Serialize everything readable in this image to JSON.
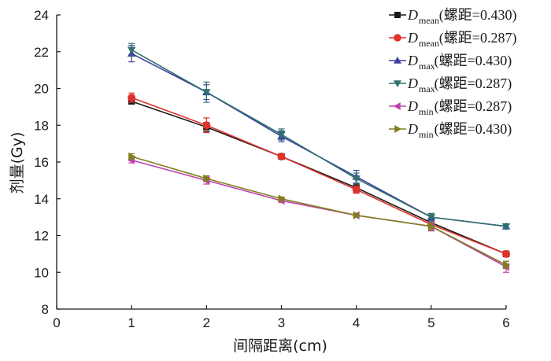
{
  "chart_data": {
    "type": "line",
    "xlabel": "间隔距离(cm)",
    "ylabel": "剂量(Gy)",
    "xlim": [
      0,
      6
    ],
    "ylim": [
      8,
      24
    ],
    "xticks": [
      0,
      1,
      2,
      3,
      4,
      5,
      6
    ],
    "yticks": [
      8,
      10,
      12,
      14,
      16,
      18,
      20,
      22,
      24
    ],
    "grid": false,
    "legend_position": "top-right",
    "x": [
      1,
      2,
      3,
      4,
      5,
      6
    ],
    "series": [
      {
        "name": "Dmean(螺距=0.430)",
        "label_main": "D",
        "label_sub": "mean",
        "label_rest": "(螺距=0.430)",
        "color": "#1a1a1a",
        "marker": "square",
        "values": [
          19.3,
          17.9,
          16.3,
          14.6,
          12.7,
          11.0
        ],
        "errors": [
          0.15,
          0.25,
          0.1,
          0.25,
          0.2,
          0.1
        ]
      },
      {
        "name": "Dmean(螺距=0.287)",
        "label_main": "D",
        "label_sub": "mean",
        "label_rest": "(螺距=0.287)",
        "color": "#e0312a",
        "marker": "circle",
        "values": [
          19.5,
          18.0,
          16.3,
          14.5,
          12.6,
          11.0
        ],
        "errors": [
          0.25,
          0.4,
          0.1,
          0.2,
          0.2,
          0.1
        ]
      },
      {
        "name": "Dmax(螺距=0.430)",
        "label_main": "D",
        "label_sub": "max",
        "label_rest": "(螺距=0.430)",
        "color": "#4040a0",
        "marker": "triangle-up",
        "values": [
          21.9,
          19.8,
          17.4,
          15.2,
          13.0,
          12.5
        ],
        "errors": [
          0.45,
          0.4,
          0.3,
          0.35,
          0.2,
          0.1
        ]
      },
      {
        "name": "Dmax(螺距=0.287)",
        "label_main": "D",
        "label_sub": "max",
        "label_rest": "(螺距=0.287)",
        "color": "#2f7070",
        "marker": "triangle-down",
        "values": [
          22.1,
          19.8,
          17.5,
          15.1,
          13.0,
          12.5
        ],
        "errors": [
          0.35,
          0.55,
          0.3,
          0.3,
          0.2,
          0.1
        ]
      },
      {
        "name": "Dmin(螺距=0.287)",
        "label_main": "D",
        "label_sub": "min",
        "label_rest": "(螺距=0.287)",
        "color": "#c040b0",
        "marker": "triangle-left",
        "values": [
          16.1,
          15.0,
          13.9,
          13.1,
          12.5,
          10.3
        ],
        "errors": [
          0.15,
          0.2,
          0.1,
          0.1,
          0.25,
          0.3
        ]
      },
      {
        "name": "Dmin(螺距=0.430)",
        "label_main": "D",
        "label_sub": "min",
        "label_rest": "(螺距=0.430)",
        "color": "#808020",
        "marker": "triangle-right",
        "values": [
          16.3,
          15.1,
          14.0,
          13.1,
          12.5,
          10.4
        ],
        "errors": [
          0.15,
          0.15,
          0.1,
          0.1,
          0.2,
          0.2
        ]
      }
    ]
  }
}
